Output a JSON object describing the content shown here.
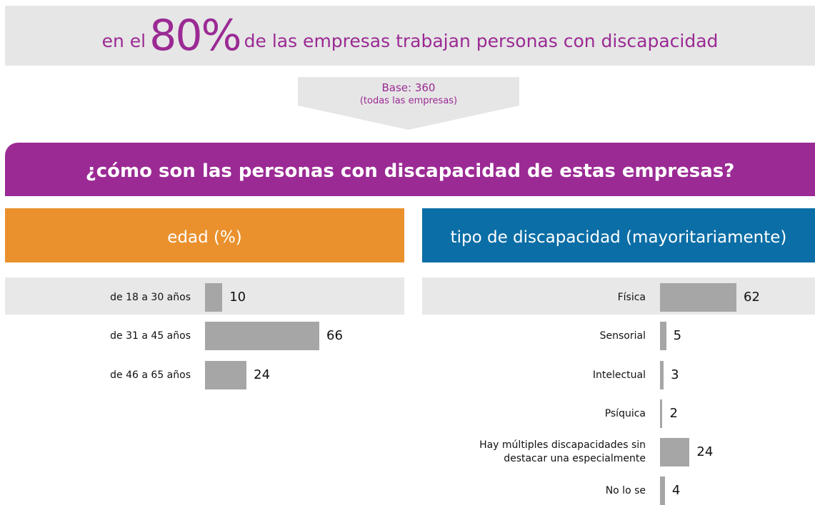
{
  "header": {
    "prefix": "en el",
    "highlight": "80%",
    "suffix": "de las empresas trabajan personas con discapacidad"
  },
  "base": {
    "label": "Base: 360",
    "note": "(todas las empresas)"
  },
  "question": "¿cómo son las personas con discapacidad de estas empresas?",
  "chart_data": [
    {
      "type": "bar",
      "orientation": "horizontal",
      "title": "edad (%)",
      "header_color": "#ea912d",
      "color": "#a6a6a6",
      "categories": [
        "de 18 a 30 años",
        "de 31 a 45 años",
        "de 46 a 65 años"
      ],
      "values": [
        10,
        66,
        24
      ]
    },
    {
      "type": "bar",
      "orientation": "horizontal",
      "title": "tipo de discapacidad (mayoritariamente)",
      "header_color": "#0b6ea6",
      "color": "#a6a6a6",
      "categories": [
        "Física",
        "Sensorial",
        "Intelectual",
        "Psíquica",
        "Hay múltiples discapacidades sin destacar una especialmente",
        "No lo se"
      ],
      "values": [
        62,
        5,
        3,
        2,
        24,
        4
      ]
    }
  ]
}
